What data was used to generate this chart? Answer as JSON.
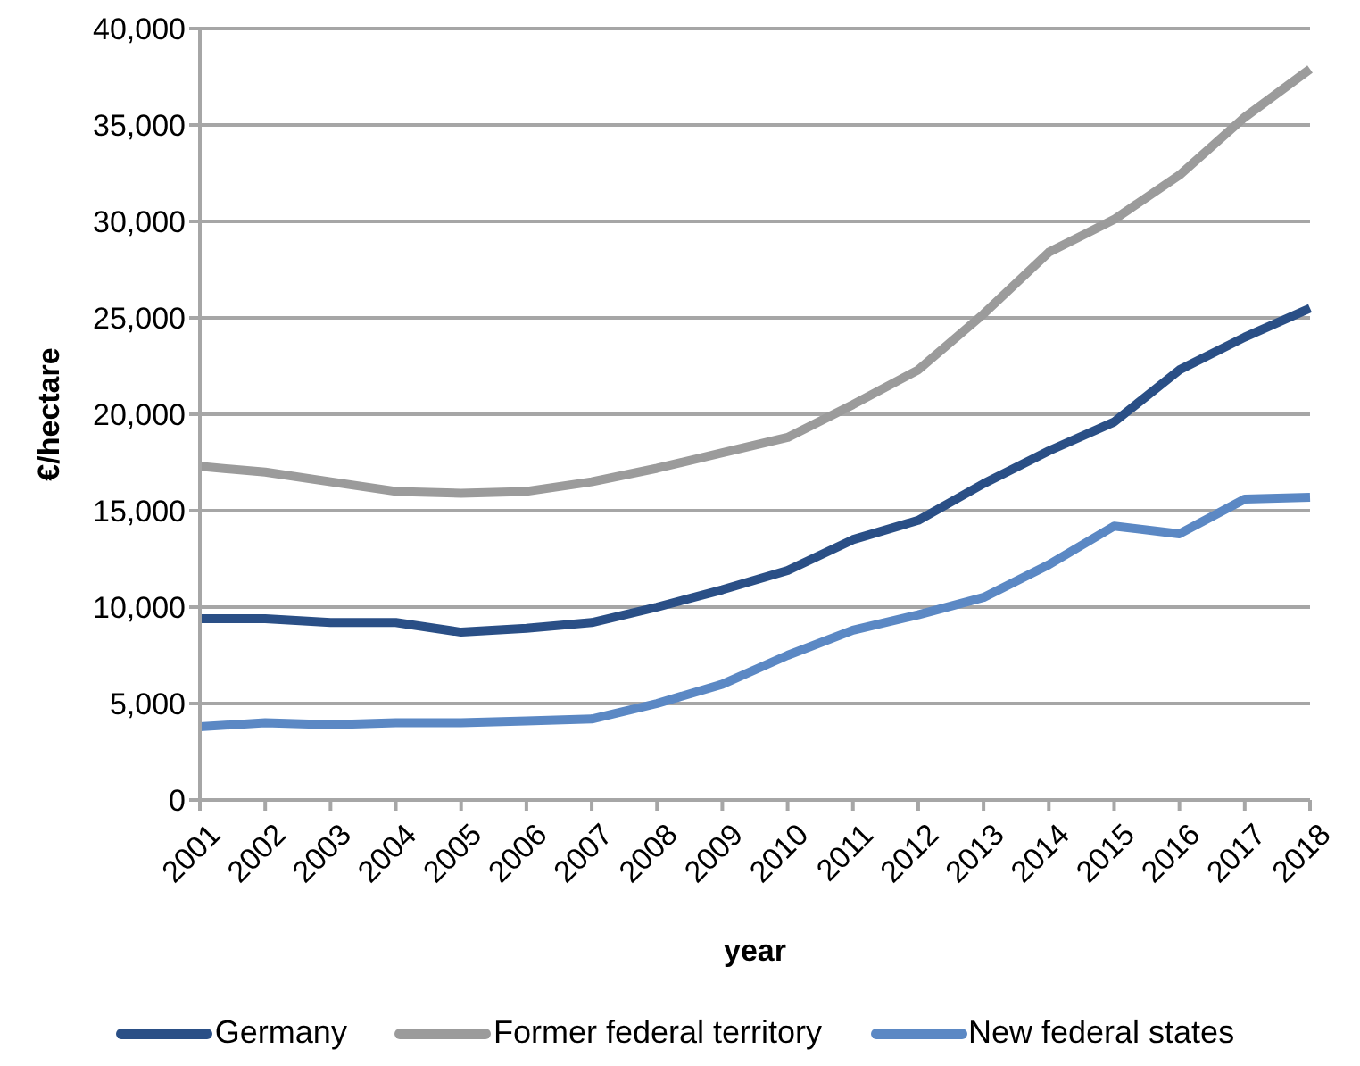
{
  "chart_data": {
    "type": "line",
    "xlabel": "year",
    "ylabel": "€/hectare",
    "categories": [
      "2001",
      "2002",
      "2003",
      "2004",
      "2005",
      "2006",
      "2007",
      "2008",
      "2009",
      "2010",
      "2011",
      "2012",
      "2013",
      "2014",
      "2015",
      "2016",
      "2017",
      "2018"
    ],
    "series": [
      {
        "name": "Germany",
        "color": "#2a4f86",
        "values": [
          9400,
          9400,
          9200,
          9200,
          8700,
          8900,
          9200,
          10000,
          10900,
          11900,
          13500,
          14500,
          16400,
          18100,
          19600,
          22300,
          24000,
          25500
        ]
      },
      {
        "name": "Former federal territory",
        "color": "#9b9b9b",
        "values": [
          17300,
          17000,
          16500,
          16000,
          15900,
          16000,
          16500,
          17200,
          18000,
          18800,
          20500,
          22300,
          25200,
          28400,
          30100,
          32400,
          35400,
          37900
        ]
      },
      {
        "name": "New federal states",
        "color": "#5b88c4",
        "values": [
          3800,
          4000,
          3900,
          4000,
          4000,
          4100,
          4200,
          5000,
          6000,
          7500,
          8800,
          9600,
          10500,
          12200,
          14200,
          13800,
          15600,
          15700
        ]
      }
    ],
    "ylim": [
      0,
      40000
    ],
    "yticks": [
      0,
      {
        "value": 5000,
        "label": "5,000"
      },
      {
        "value": 10000,
        "label": "10,000"
      },
      {
        "value": 15000,
        "label": "15,000"
      },
      {
        "value": 20000,
        "label": "20,000"
      },
      {
        "value": 25000,
        "label": "25,000"
      },
      {
        "value": 30000,
        "label": "30,000"
      },
      {
        "value": 35000,
        "label": "35,000"
      },
      {
        "value": 40000,
        "label": "40,000"
      }
    ],
    "grid": "y",
    "legend": "bottom",
    "marker": "none",
    "line_style": "solid"
  }
}
